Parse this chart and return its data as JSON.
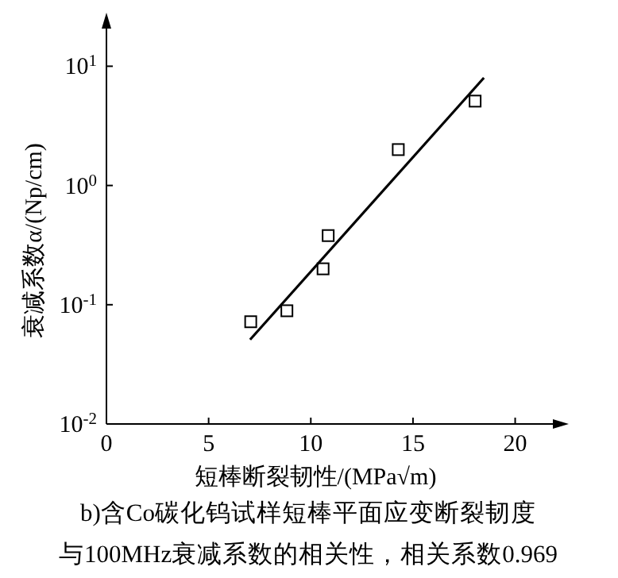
{
  "chart_data": {
    "type": "scatter",
    "xlabel": "短棒断裂韧性/(MPa√m)",
    "ylabel": "衰减系数α/(Np/cm)",
    "log": "y",
    "xlim": [
      0,
      22
    ],
    "ylim": [
      0.01,
      22
    ],
    "xticks": [
      0,
      5,
      10,
      15,
      20
    ],
    "yticks": [
      {
        "value": 0.01,
        "label": "10$^{-2}$"
      },
      {
        "value": 0.1,
        "label": "10$^{-1}$"
      },
      {
        "value": 1,
        "label": "10$^{0}$"
      },
      {
        "value": 10,
        "label": "10$^{1}$"
      }
    ],
    "grid": false,
    "series": [
      {
        "marker": "square",
        "color": "#000000",
        "x": [
          7.06,
          8.83,
          10.6,
          10.85,
          14.28,
          18.04
        ],
        "values": [
          0.072,
          0.089,
          0.2,
          0.38,
          2.0,
          5.1
        ]
      },
      {
        "type": "line",
        "marker": "none",
        "line_style": "solid",
        "color": "#000000",
        "x": [
          7.03,
          18.47
        ],
        "values": [
          0.051,
          8.0
        ]
      }
    ],
    "annotations": [
      "b)含Co碳化钨试样短棒平面应变断裂韧度",
      "与100MHz衰减系数的相关性，相关系数0.969"
    ]
  }
}
